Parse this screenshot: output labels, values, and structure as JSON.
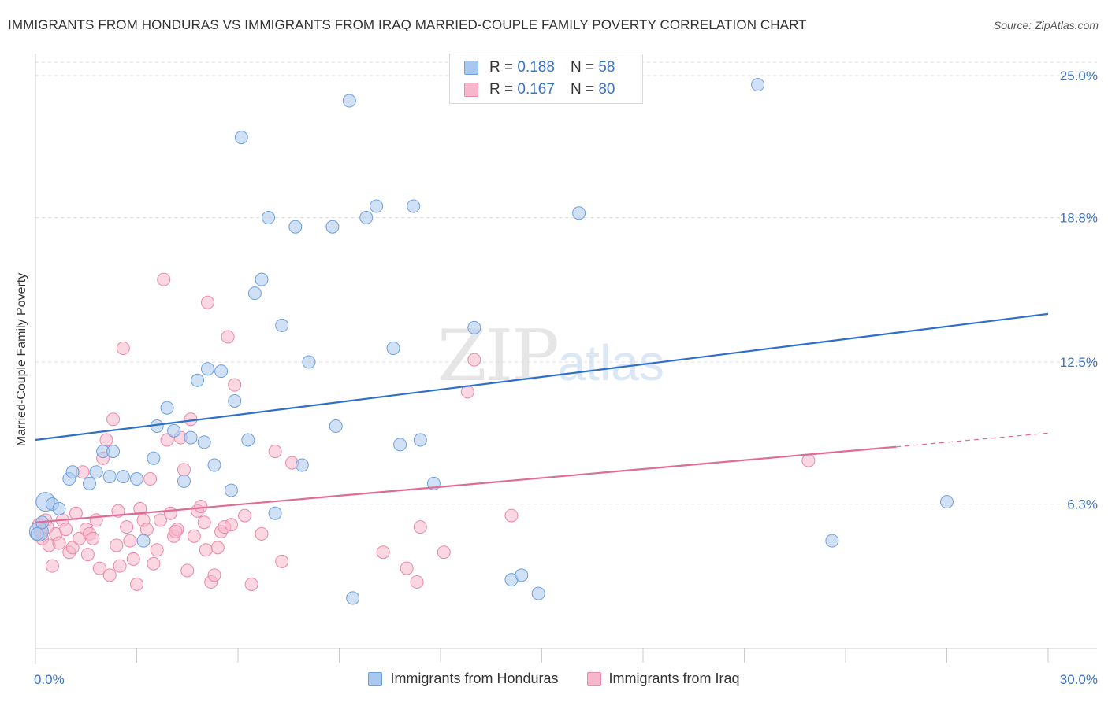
{
  "title": "IMMIGRANTS FROM HONDURAS VS IMMIGRANTS FROM IRAQ MARRIED-COUPLE FAMILY POVERTY CORRELATION CHART",
  "source": "Source: ZipAtlas.com",
  "watermark": {
    "zip": "ZIP",
    "atlas": "atlas"
  },
  "legend": {
    "honduras": {
      "r_label": "R =",
      "r_value": "0.188",
      "n_label": "N =",
      "n_value": "58"
    },
    "iraq": {
      "r_label": "R =",
      "r_value": "0.167",
      "n_label": "N =",
      "n_value": "80"
    }
  },
  "bottom_legend": {
    "honduras": "Immigrants from Honduras",
    "iraq": "Immigrants from Iraq"
  },
  "colors": {
    "blue_fill": "#a9c8ef",
    "blue_stroke": "#6d9fde",
    "blue_line": "#2f6fca",
    "pink_fill": "#f7b6cb",
    "pink_stroke": "#ea88a8",
    "pink_line": "#e06b96",
    "axis_label": "#3b73c4",
    "grid": "#dddddd"
  },
  "chart_data": {
    "type": "scatter",
    "title": "IMMIGRANTS FROM HONDURAS VS IMMIGRANTS FROM IRAQ MARRIED-COUPLE FAMILY POVERTY CORRELATION CHART",
    "xlabel": "",
    "ylabel": "Married-Couple Family Poverty",
    "xlim": [
      0,
      30
    ],
    "ylim": [
      0,
      26.2
    ],
    "x_tick_labels": [
      "0.0%",
      "30.0%"
    ],
    "y_ticks": [
      6.3,
      12.5,
      18.8,
      25.0
    ],
    "y_tick_labels": [
      "6.3%",
      "12.5%",
      "18.8%",
      "25.0%"
    ],
    "grid": "horizontal dashed",
    "series": [
      {
        "name": "Immigrants from Honduras",
        "r": 0.188,
        "n": 58,
        "trend": {
          "x": [
            0,
            30
          ],
          "y": [
            9.1,
            14.6
          ]
        },
        "points": [
          [
            0.1,
            5.1
          ],
          [
            0.3,
            6.4
          ],
          [
            0.5,
            6.3
          ],
          [
            0.7,
            6.1
          ],
          [
            1.0,
            7.4
          ],
          [
            1.1,
            7.7
          ],
          [
            1.6,
            7.2
          ],
          [
            1.8,
            7.7
          ],
          [
            2.0,
            8.6
          ],
          [
            2.3,
            8.6
          ],
          [
            2.2,
            7.5
          ],
          [
            2.6,
            7.5
          ],
          [
            3.0,
            7.4
          ],
          [
            3.2,
            4.7
          ],
          [
            3.5,
            8.3
          ],
          [
            3.6,
            9.7
          ],
          [
            3.9,
            10.5
          ],
          [
            4.1,
            9.5
          ],
          [
            4.4,
            7.3
          ],
          [
            4.6,
            9.2
          ],
          [
            4.8,
            11.7
          ],
          [
            5.0,
            9.0
          ],
          [
            5.1,
            12.2
          ],
          [
            5.3,
            8.0
          ],
          [
            5.5,
            12.1
          ],
          [
            5.8,
            6.9
          ],
          [
            5.9,
            10.8
          ],
          [
            6.1,
            22.3
          ],
          [
            6.3,
            9.1
          ],
          [
            6.5,
            15.5
          ],
          [
            6.7,
            16.1
          ],
          [
            6.9,
            18.8
          ],
          [
            7.1,
            5.9
          ],
          [
            7.3,
            14.1
          ],
          [
            7.7,
            18.4
          ],
          [
            7.9,
            8.0
          ],
          [
            8.1,
            12.5
          ],
          [
            8.8,
            18.4
          ],
          [
            8.9,
            9.7
          ],
          [
            9.3,
            23.9
          ],
          [
            9.4,
            2.2
          ],
          [
            9.8,
            18.8
          ],
          [
            10.1,
            19.3
          ],
          [
            10.6,
            13.1
          ],
          [
            10.8,
            8.9
          ],
          [
            11.2,
            19.3
          ],
          [
            11.4,
            9.1
          ],
          [
            11.8,
            7.2
          ],
          [
            13.0,
            14.0
          ],
          [
            14.1,
            3.0
          ],
          [
            14.4,
            3.2
          ],
          [
            14.9,
            2.4
          ],
          [
            16.1,
            19.0
          ],
          [
            21.4,
            24.6
          ],
          [
            23.6,
            4.7
          ],
          [
            27.0,
            6.4
          ],
          [
            0.05,
            5.0
          ],
          [
            0.2,
            5.5
          ]
        ]
      },
      {
        "name": "Immigrants from Iraq",
        "r": 0.167,
        "n": 80,
        "trend": {
          "x": [
            0,
            25.5
          ],
          "y": [
            5.5,
            8.8
          ]
        },
        "trend_dashed": {
          "x": [
            25.5,
            30
          ],
          "y": [
            8.8,
            9.4
          ]
        },
        "points": [
          [
            0.1,
            5.4
          ],
          [
            0.2,
            4.8
          ],
          [
            0.3,
            5.6
          ],
          [
            0.4,
            4.5
          ],
          [
            0.5,
            3.6
          ],
          [
            0.6,
            5.0
          ],
          [
            0.7,
            4.6
          ],
          [
            0.8,
            5.6
          ],
          [
            0.9,
            5.2
          ],
          [
            1.0,
            4.2
          ],
          [
            1.1,
            4.4
          ],
          [
            1.2,
            5.9
          ],
          [
            1.3,
            4.8
          ],
          [
            1.4,
            7.7
          ],
          [
            1.5,
            5.2
          ],
          [
            1.6,
            5.0
          ],
          [
            1.7,
            4.8
          ],
          [
            1.8,
            5.6
          ],
          [
            1.9,
            3.5
          ],
          [
            2.0,
            8.3
          ],
          [
            2.1,
            9.1
          ],
          [
            2.2,
            3.2
          ],
          [
            2.3,
            10.0
          ],
          [
            2.4,
            4.5
          ],
          [
            2.5,
            3.6
          ],
          [
            2.6,
            13.1
          ],
          [
            2.7,
            5.3
          ],
          [
            2.8,
            4.7
          ],
          [
            2.9,
            3.9
          ],
          [
            3.0,
            2.8
          ],
          [
            3.1,
            6.1
          ],
          [
            3.2,
            5.6
          ],
          [
            3.3,
            5.2
          ],
          [
            3.4,
            7.4
          ],
          [
            3.5,
            3.7
          ],
          [
            3.6,
            4.3
          ],
          [
            3.7,
            5.6
          ],
          [
            3.8,
            16.1
          ],
          [
            3.9,
            9.1
          ],
          [
            4.0,
            5.9
          ],
          [
            4.1,
            4.9
          ],
          [
            4.2,
            5.2
          ],
          [
            4.3,
            9.2
          ],
          [
            4.4,
            7.8
          ],
          [
            4.5,
            3.4
          ],
          [
            4.6,
            10.0
          ],
          [
            4.7,
            4.9
          ],
          [
            4.8,
            6.0
          ],
          [
            4.9,
            6.2
          ],
          [
            5.0,
            5.5
          ],
          [
            5.1,
            15.1
          ],
          [
            5.2,
            2.9
          ],
          [
            5.3,
            3.2
          ],
          [
            5.4,
            4.4
          ],
          [
            5.5,
            5.1
          ],
          [
            5.6,
            5.3
          ],
          [
            5.7,
            13.6
          ],
          [
            5.8,
            5.4
          ],
          [
            5.9,
            11.5
          ],
          [
            6.2,
            5.8
          ],
          [
            6.4,
            2.8
          ],
          [
            6.7,
            5.0
          ],
          [
            7.1,
            8.6
          ],
          [
            7.3,
            3.8
          ],
          [
            7.6,
            8.1
          ],
          [
            10.3,
            4.2
          ],
          [
            11.0,
            3.5
          ],
          [
            11.3,
            2.9
          ],
          [
            11.4,
            5.3
          ],
          [
            12.1,
            4.2
          ],
          [
            12.8,
            11.2
          ],
          [
            13.0,
            12.6
          ],
          [
            14.1,
            5.8
          ],
          [
            22.9,
            8.2
          ],
          [
            0.15,
            5.1
          ],
          [
            0.35,
            5.3
          ],
          [
            1.55,
            4.1
          ],
          [
            2.45,
            6.0
          ],
          [
            4.15,
            5.1
          ],
          [
            5.05,
            4.3
          ]
        ]
      }
    ]
  }
}
